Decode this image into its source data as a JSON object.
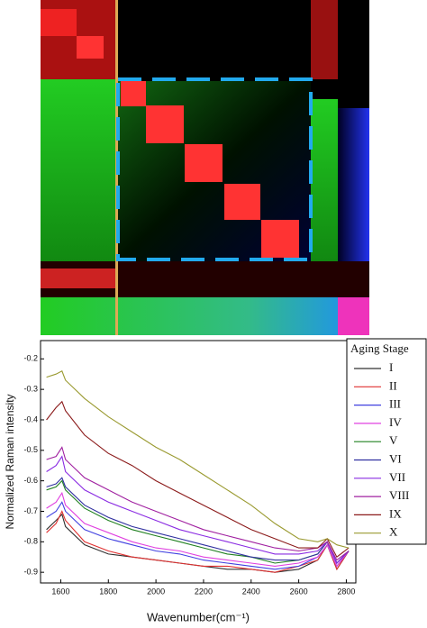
{
  "chart_data": {
    "type": "line",
    "xlabel": "Wavenumber(cm⁻¹)",
    "ylabel": "Normalized Raman intensity",
    "legend_title": "Aging Stage",
    "legend": "upper right",
    "x": [
      1540,
      1580,
      1605,
      1620,
      1700,
      1800,
      1900,
      2000,
      2100,
      2200,
      2300,
      2400,
      2500,
      2600,
      2680,
      2720,
      2760,
      2810
    ],
    "xlim": [
      1515,
      2840
    ],
    "xticks": [
      1600,
      1800,
      2000,
      2200,
      2400,
      2600,
      2800
    ],
    "ylim": [
      -0.935,
      -0.14
    ],
    "yticks": [
      -0.2,
      -0.3,
      -0.4,
      -0.5,
      -0.6,
      -0.7,
      -0.8,
      -0.9
    ],
    "series": [
      {
        "name": "I",
        "color": "#303030",
        "values": [
          -0.76,
          -0.73,
          -0.71,
          -0.75,
          -0.81,
          -0.84,
          -0.85,
          -0.86,
          -0.87,
          -0.88,
          -0.89,
          -0.89,
          -0.9,
          -0.89,
          -0.86,
          -0.81,
          -0.89,
          -0.83
        ]
      },
      {
        "name": "II",
        "color": "#e03030",
        "values": [
          -0.77,
          -0.74,
          -0.7,
          -0.73,
          -0.8,
          -0.83,
          -0.85,
          -0.86,
          -0.87,
          -0.88,
          -0.88,
          -0.89,
          -0.9,
          -0.88,
          -0.86,
          -0.81,
          -0.89,
          -0.83
        ]
      },
      {
        "name": "III",
        "color": "#4040e0",
        "values": [
          -0.72,
          -0.7,
          -0.67,
          -0.7,
          -0.76,
          -0.79,
          -0.81,
          -0.83,
          -0.84,
          -0.86,
          -0.87,
          -0.88,
          -0.89,
          -0.88,
          -0.85,
          -0.81,
          -0.88,
          -0.83
        ]
      },
      {
        "name": "IV",
        "color": "#e040e0",
        "values": [
          -0.69,
          -0.67,
          -0.64,
          -0.68,
          -0.74,
          -0.77,
          -0.8,
          -0.82,
          -0.83,
          -0.85,
          -0.86,
          -0.87,
          -0.88,
          -0.87,
          -0.85,
          -0.81,
          -0.88,
          -0.83
        ]
      },
      {
        "name": "V",
        "color": "#208020",
        "values": [
          -0.63,
          -0.62,
          -0.6,
          -0.63,
          -0.69,
          -0.73,
          -0.76,
          -0.78,
          -0.8,
          -0.82,
          -0.84,
          -0.85,
          -0.87,
          -0.86,
          -0.84,
          -0.8,
          -0.87,
          -0.83
        ]
      },
      {
        "name": "VI",
        "color": "#3030a0",
        "values": [
          -0.62,
          -0.61,
          -0.59,
          -0.62,
          -0.68,
          -0.72,
          -0.75,
          -0.77,
          -0.79,
          -0.81,
          -0.83,
          -0.85,
          -0.86,
          -0.86,
          -0.84,
          -0.8,
          -0.87,
          -0.83
        ]
      },
      {
        "name": "VII",
        "color": "#8a2be2",
        "values": [
          -0.57,
          -0.55,
          -0.52,
          -0.57,
          -0.63,
          -0.67,
          -0.7,
          -0.73,
          -0.76,
          -0.78,
          -0.8,
          -0.82,
          -0.84,
          -0.84,
          -0.83,
          -0.8,
          -0.87,
          -0.83
        ]
      },
      {
        "name": "VIII",
        "color": "#a020a0",
        "values": [
          -0.53,
          -0.52,
          -0.49,
          -0.53,
          -0.59,
          -0.63,
          -0.67,
          -0.7,
          -0.73,
          -0.76,
          -0.78,
          -0.8,
          -0.82,
          -0.83,
          -0.82,
          -0.8,
          -0.86,
          -0.83
        ]
      },
      {
        "name": "IX",
        "color": "#8b1a1a",
        "values": [
          -0.4,
          -0.36,
          -0.34,
          -0.37,
          -0.45,
          -0.51,
          -0.55,
          -0.6,
          -0.64,
          -0.68,
          -0.72,
          -0.76,
          -0.79,
          -0.82,
          -0.82,
          -0.79,
          -0.85,
          -0.82
        ]
      },
      {
        "name": "X",
        "color": "#9a9a30",
        "values": [
          -0.26,
          -0.25,
          -0.24,
          -0.27,
          -0.33,
          -0.39,
          -0.44,
          -0.49,
          -0.53,
          -0.58,
          -0.63,
          -0.68,
          -0.74,
          -0.79,
          -0.8,
          -0.79,
          -0.81,
          -0.82
        ]
      }
    ]
  }
}
